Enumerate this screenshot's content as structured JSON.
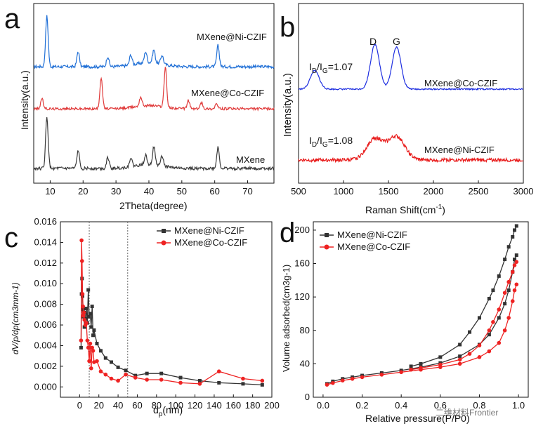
{
  "chart_data": [
    {
      "panel": "a",
      "type": "line",
      "xlabel": "2Theta(degree)",
      "ylabel": "Intensity(a.u.)",
      "xlim": [
        5,
        78
      ],
      "xticks": [
        10,
        20,
        30,
        40,
        50,
        60,
        70
      ],
      "tick_labels_x": [
        "10",
        "20",
        "30",
        "40",
        "50",
        "60",
        "70"
      ],
      "yticks_shown": false,
      "series": [
        {
          "name": "MXene@Ni-CZIF",
          "color": "#1f6fd6",
          "peaks": [
            [
              9,
              1.0
            ],
            [
              18.5,
              0.3
            ],
            [
              27.5,
              0.2
            ],
            [
              34.5,
              0.2
            ],
            [
              39,
              0.22
            ],
            [
              41.5,
              0.26
            ],
            [
              44,
              0.18
            ],
            [
              61,
              0.42
            ]
          ]
        },
        {
          "name": "MXene@Co-CZIF",
          "color": "#e03a3a",
          "peaks": [
            [
              7.5,
              0.25
            ],
            [
              25.5,
              0.75
            ],
            [
              37.5,
              0.22
            ],
            [
              45,
              0.95
            ],
            [
              52,
              0.2
            ],
            [
              56,
              0.15
            ],
            [
              60.5,
              0.12
            ]
          ]
        },
        {
          "name": "MXene",
          "color": "#3a3a3a",
          "peaks": [
            [
              9,
              1.0
            ],
            [
              18.5,
              0.35
            ],
            [
              27.5,
              0.22
            ],
            [
              34.5,
              0.18
            ],
            [
              39,
              0.2
            ],
            [
              41.5,
              0.35
            ],
            [
              44,
              0.2
            ],
            [
              61,
              0.42
            ]
          ]
        }
      ]
    },
    {
      "panel": "b",
      "type": "line",
      "xlabel": "Raman Shift(cm-1)",
      "ylabel": "Intensity(a.u.)",
      "xlim": [
        500,
        3000
      ],
      "xticks": [
        500,
        1000,
        1500,
        2000,
        2500,
        3000
      ],
      "tick_labels_x": [
        "500",
        "1000",
        "1500",
        "2000",
        "2500",
        "3000"
      ],
      "yticks_shown": false,
      "annotations": [
        "D",
        "G",
        "ID/IG=1.07",
        "ID/IG=1.08"
      ],
      "series": [
        {
          "name": "MXene@Co-CZIF",
          "color": "#1f2fe0",
          "ratio_ID_IG": 1.07,
          "peaks": [
            [
              680,
              0.35
            ],
            [
              1350,
              0.85
            ],
            [
              1590,
              0.8
            ]
          ]
        },
        {
          "name": "MXene@Ni-CZIF",
          "color": "#e81a1a",
          "ratio_ID_IG": 1.08,
          "peaks": [
            [
              1350,
              0.55
            ],
            [
              1590,
              0.6
            ]
          ]
        }
      ]
    },
    {
      "panel": "c",
      "type": "line",
      "xlabel": "dp(nm)",
      "ylabel": "dV/p/dp(cm3mm-1)",
      "xlim": [
        -20,
        200
      ],
      "ylim": [
        -0.001,
        0.016
      ],
      "xticks": [
        0,
        20,
        40,
        60,
        80,
        100,
        120,
        140,
        160,
        180,
        200
      ],
      "yticks": [
        0.0,
        0.002,
        0.004,
        0.006,
        0.008,
        0.01,
        0.012,
        0.014,
        0.016
      ],
      "tick_labels_x": [
        "0",
        "20",
        "40",
        "60",
        "80",
        "100",
        "120",
        "140",
        "160",
        "180",
        "200"
      ],
      "tick_labels_y": [
        "0.000",
        "0.002",
        "0.004",
        "0.006",
        "0.008",
        "0.010",
        "0.012",
        "0.014",
        "0.016"
      ],
      "vlines": [
        10,
        50
      ],
      "legend_position": "top-right",
      "series": [
        {
          "name": "MXene@Ni-CZIF",
          "color": "#333333",
          "marker": "square",
          "x": [
            1.5,
            2,
            2.5,
            3,
            3.5,
            4,
            4.5,
            5,
            6,
            7,
            8,
            9,
            10,
            11,
            12,
            13,
            14,
            15,
            18,
            22,
            27,
            33,
            40,
            48,
            58,
            70,
            85,
            105,
            125,
            145,
            170,
            190
          ],
          "y": [
            0.0038,
            0.009,
            0.0105,
            0.0088,
            0.0075,
            0.0068,
            0.0072,
            0.0058,
            0.0066,
            0.0076,
            0.0062,
            0.0094,
            0.0068,
            0.0071,
            0.0058,
            0.0078,
            0.005,
            0.0055,
            0.0042,
            0.0035,
            0.0028,
            0.0024,
            0.0019,
            0.0016,
            0.0011,
            0.0013,
            0.0013,
            0.0009,
            0.0006,
            0.0004,
            0.0003,
            0.0002
          ]
        },
        {
          "name": "MXene@Co-CZIF",
          "color": "#ee2222",
          "marker": "circle",
          "x": [
            1.5,
            2,
            2.5,
            3,
            3.5,
            4,
            4.5,
            5,
            6,
            7,
            8,
            9,
            10,
            11,
            12,
            13,
            14,
            15,
            18,
            22,
            27,
            33,
            40,
            48,
            58,
            70,
            85,
            105,
            125,
            145,
            170,
            190
          ],
          "y": [
            0.0045,
            0.0142,
            0.0122,
            0.009,
            0.0078,
            0.0069,
            0.0072,
            0.0065,
            0.006,
            0.0062,
            0.0045,
            0.0038,
            0.0025,
            0.0042,
            0.0018,
            0.0038,
            0.0035,
            0.0024,
            0.0025,
            0.0015,
            0.0012,
            0.0008,
            0.0006,
            0.0012,
            0.0009,
            0.0007,
            0.0007,
            0.0004,
            0.0003,
            0.0015,
            0.0008,
            0.0006
          ]
        }
      ]
    },
    {
      "panel": "d",
      "type": "line",
      "xlabel": "Relative pressure(P/P0)",
      "ylabel": "Volume adsorbed(cm3g-1)",
      "xlim": [
        -0.05,
        1.05
      ],
      "ylim": [
        0,
        210
      ],
      "xticks": [
        0.0,
        0.2,
        0.4,
        0.6,
        0.8,
        1.0
      ],
      "yticks": [
        0,
        40,
        80,
        120,
        160,
        200
      ],
      "tick_labels_x": [
        "0.0",
        "0.2",
        "0.4",
        "0.6",
        "0.8",
        "1.0"
      ],
      "tick_labels_y": [
        "0",
        "40",
        "80",
        "120",
        "160",
        "200"
      ],
      "legend_position": "top-left",
      "series": [
        {
          "name": "MXene@Ni-CZIF",
          "color": "#333333",
          "marker": "square",
          "adsorption_x": [
            0.02,
            0.05,
            0.1,
            0.15,
            0.2,
            0.3,
            0.4,
            0.5,
            0.6,
            0.7,
            0.8,
            0.85,
            0.9,
            0.93,
            0.95,
            0.97,
            0.98,
            0.99
          ],
          "adsorption_y": [
            16,
            19,
            22,
            24,
            26,
            29,
            32,
            36,
            41,
            49,
            63,
            75,
            95,
            112,
            128,
            150,
            165,
            170
          ],
          "desorption_x": [
            0.99,
            0.98,
            0.97,
            0.95,
            0.93,
            0.9,
            0.87,
            0.85,
            0.8,
            0.75,
            0.7,
            0.6,
            0.5,
            0.45
          ],
          "desorption_y": [
            205,
            200,
            192,
            180,
            165,
            145,
            128,
            118,
            95,
            78,
            63,
            48,
            40,
            37
          ]
        },
        {
          "name": "MXene@Co-CZIF",
          "color": "#ee2222",
          "marker": "circle",
          "adsorption_x": [
            0.02,
            0.05,
            0.1,
            0.15,
            0.2,
            0.3,
            0.4,
            0.5,
            0.6,
            0.7,
            0.8,
            0.85,
            0.9,
            0.93,
            0.95,
            0.97,
            0.98,
            0.99
          ],
          "adsorption_y": [
            15,
            17,
            20,
            22,
            24,
            27,
            30,
            33,
            36,
            40,
            48,
            55,
            65,
            80,
            95,
            115,
            128,
            135
          ],
          "desorption_x": [
            0.99,
            0.98,
            0.97,
            0.95,
            0.93,
            0.9,
            0.87,
            0.85,
            0.8,
            0.75,
            0.7,
            0.6,
            0.5,
            0.45
          ],
          "desorption_y": [
            162,
            158,
            150,
            138,
            125,
            105,
            90,
            80,
            62,
            52,
            45,
            39,
            35,
            33
          ]
        }
      ]
    }
  ],
  "labels": {
    "a": "a",
    "b": "b",
    "c": "c",
    "d": "d",
    "a_xlabel": "2Theta(degree)",
    "a_ylabel": "Intensity(a.u.)",
    "b_ylabel": "Intensity(a.u.)",
    "b_xlabel_main": "Raman Shift(cm",
    "b_xlabel_sup": "-1",
    "b_xlabel_end": ")",
    "b_D": "D",
    "b_G": "G",
    "b_ratio1_I": "I",
    "b_ratio1_D": "D",
    "b_ratio1_slash": "/I",
    "b_ratio1_G": "G",
    "b_ratio1_val": "=1.07",
    "b_ratio2_I": "I",
    "b_ratio2_D": "D",
    "b_ratio2_slash": "/I",
    "b_ratio2_G": "G",
    "b_ratio2_val": "=1.08",
    "c_xlabel_d": "d",
    "c_xlabel_p": "p",
    "c_xlabel_end": "(nm)",
    "c_ylabel": "dV/p/dp(cm3mm-1)",
    "d_xlabel": "Relative pressure(P/P0)",
    "d_ylabel": "Volume adsorbed(cm3g-1)",
    "watermark": "二维材料Frontier"
  }
}
